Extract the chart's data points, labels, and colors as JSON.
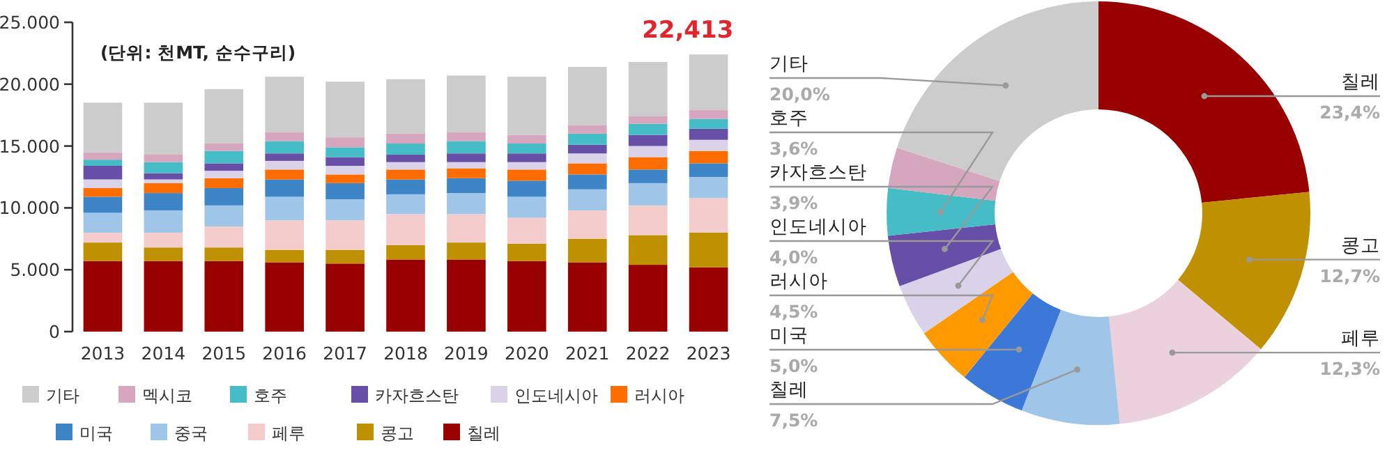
{
  "chart_data": [
    {
      "type": "bar",
      "stacked": true,
      "legend": "bottom",
      "annotations": [
        "(단위: 천MT, 순수구리)",
        {
          "text": "22,413",
          "x": "2023",
          "y": 22413
        }
      ],
      "categories": [
        "2013",
        "2014",
        "2015",
        "2016",
        "2017",
        "2018",
        "2019",
        "2020",
        "2021",
        "2022",
        "2023"
      ],
      "ylim": [
        0,
        25000
      ],
      "yticks": [
        0,
        {
          "value": 5000,
          "label": "5.000"
        },
        {
          "value": 10000,
          "label": "10.000"
        },
        {
          "value": 15000,
          "label": "15.000"
        },
        {
          "value": 20000,
          "label": "20.000"
        },
        {
          "value": 25000,
          "label": "25.000"
        }
      ],
      "series": [
        {
          "name": "칠레",
          "color": "#990000",
          "values": [
            5700,
            5700,
            5700,
            5600,
            5500,
            5800,
            5800,
            5700,
            5600,
            5400,
            5200
          ]
        },
        {
          "name": "콩고",
          "color": "#bf9000",
          "values": [
            1500,
            1100,
            1100,
            1000,
            1100,
            1200,
            1400,
            1400,
            1900,
            2400,
            2800
          ]
        },
        {
          "name": "페루",
          "color": "#f4cccc",
          "values": [
            800,
            1200,
            1700,
            2400,
            2400,
            2500,
            2300,
            2100,
            2300,
            2400,
            2800
          ]
        },
        {
          "name": "중국",
          "color": "#9fc5e8",
          "values": [
            1600,
            1800,
            1700,
            1900,
            1700,
            1600,
            1700,
            1700,
            1700,
            1800,
            1700
          ]
        },
        {
          "name": "미국",
          "color": "#3d85c6",
          "values": [
            1300,
            1400,
            1400,
            1400,
            1300,
            1200,
            1200,
            1300,
            1200,
            1100,
            1100
          ]
        },
        {
          "name": "러시아",
          "color": "#ff6d01",
          "values": [
            700,
            800,
            800,
            800,
            700,
            800,
            800,
            900,
            900,
            1000,
            1000
          ]
        },
        {
          "name": "인도네시아",
          "color": "#d9d2e9",
          "values": [
            700,
            300,
            600,
            700,
            700,
            600,
            500,
            600,
            800,
            900,
            900
          ]
        },
        {
          "name": "카자흐스탄",
          "color": "#674ea7",
          "values": [
            1100,
            500,
            600,
            600,
            700,
            600,
            700,
            700,
            700,
            900,
            900
          ]
        },
        {
          "name": "호주",
          "color": "#46bdc6",
          "values": [
            500,
            900,
            1000,
            1000,
            800,
            900,
            1000,
            800,
            900,
            900,
            800
          ]
        },
        {
          "name": "멕시코",
          "color": "#d5a6bd",
          "values": [
            600,
            600,
            600,
            700,
            800,
            800,
            700,
            700,
            700,
            600,
            700
          ]
        },
        {
          "name": "기타",
          "color": "#cccccc",
          "values": [
            4000,
            4200,
            4400,
            4500,
            4500,
            4400,
            4600,
            4700,
            4700,
            4400,
            4500
          ]
        }
      ]
    },
    {
      "type": "donut",
      "categories": [
        "칠레",
        "콩고",
        "페루",
        "칠레",
        "미국",
        "러시아",
        "인도네시아",
        "카자흐스탄",
        "호주",
        null,
        "기타"
      ],
      "values": [
        23.4,
        12.7,
        12.3,
        7.5,
        5.0,
        4.5,
        4.0,
        3.9,
        3.6,
        3.1,
        20.0
      ],
      "value_labels": [
        "23,4%",
        "12,7%",
        "12,3%",
        "7,5%",
        "5,0%",
        "4,5%",
        "4,0%",
        "3,9%",
        "3,6%",
        null,
        "20,0%"
      ],
      "colors": [
        "#990000",
        "#bf9000",
        "#ead1dc",
        "#9fc5e8",
        "#3c78d8",
        "#ff9900",
        "#d9d2e9",
        "#674ea7",
        "#46bdc6",
        "#d5a6bd",
        "#cccccc"
      ]
    }
  ]
}
